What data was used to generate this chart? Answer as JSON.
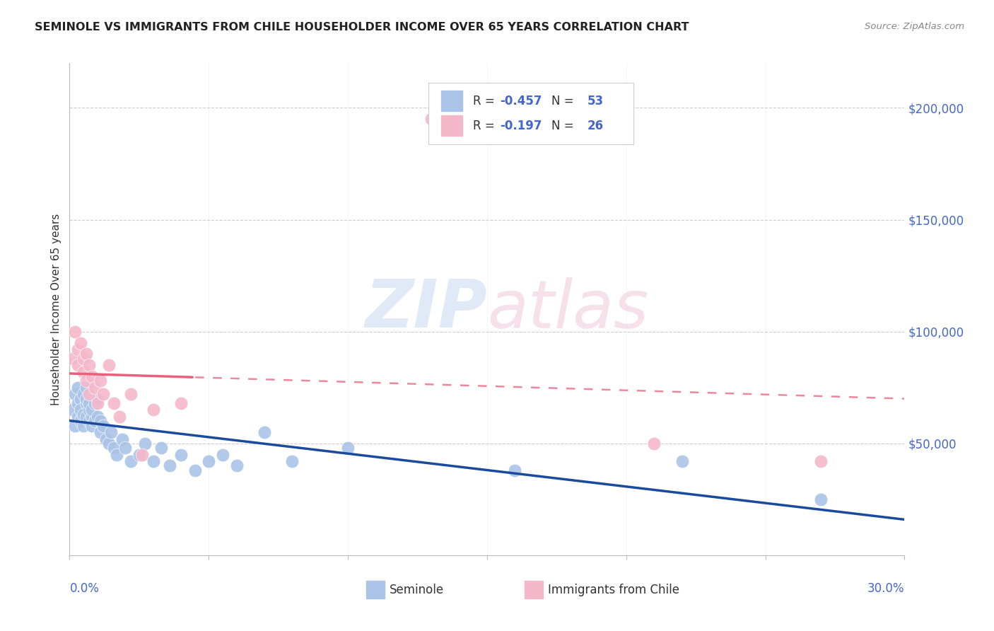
{
  "title": "SEMINOLE VS IMMIGRANTS FROM CHILE HOUSEHOLDER INCOME OVER 65 YEARS CORRELATION CHART",
  "source": "Source: ZipAtlas.com",
  "ylabel": "Householder Income Over 65 years",
  "xlim": [
    0.0,
    0.3
  ],
  "ylim": [
    0,
    220000
  ],
  "yticks": [
    0,
    50000,
    100000,
    150000,
    200000
  ],
  "ytick_labels": [
    "",
    "$50,000",
    "$100,000",
    "$150,000",
    "$200,000"
  ],
  "watermark_zip": "ZIP",
  "watermark_atlas": "atlas",
  "seminole_color": "#aac4e8",
  "chile_color": "#f5b8ca",
  "seminole_line_color": "#1a4a9c",
  "chile_line_color": "#e8607a",
  "seminole_label": "Seminole",
  "chile_label": "Immigrants from Chile",
  "blue_text_color": "#4466cc",
  "title_color": "#222222",
  "source_color": "#888888",
  "seminole_R": "-0.457",
  "seminole_N": "53",
  "chile_R": "-0.197",
  "chile_N": "26",
  "seminole_x": [
    0.001,
    0.002,
    0.002,
    0.003,
    0.003,
    0.003,
    0.004,
    0.004,
    0.004,
    0.005,
    0.005,
    0.005,
    0.006,
    0.006,
    0.006,
    0.006,
    0.007,
    0.007,
    0.007,
    0.008,
    0.008,
    0.008,
    0.009,
    0.009,
    0.01,
    0.01,
    0.011,
    0.011,
    0.012,
    0.013,
    0.014,
    0.015,
    0.016,
    0.017,
    0.019,
    0.02,
    0.022,
    0.025,
    0.027,
    0.03,
    0.033,
    0.036,
    0.04,
    0.045,
    0.05,
    0.055,
    0.06,
    0.07,
    0.08,
    0.1,
    0.16,
    0.22,
    0.27
  ],
  "seminole_y": [
    65000,
    58000,
    72000,
    62000,
    68000,
    75000,
    60000,
    70000,
    65000,
    72000,
    58000,
    63000,
    68000,
    75000,
    62000,
    70000,
    65000,
    60000,
    68000,
    62000,
    58000,
    65000,
    60000,
    68000,
    62000,
    70000,
    55000,
    60000,
    58000,
    52000,
    50000,
    55000,
    48000,
    45000,
    52000,
    48000,
    42000,
    45000,
    50000,
    42000,
    48000,
    40000,
    45000,
    38000,
    42000,
    45000,
    40000,
    55000,
    42000,
    48000,
    38000,
    42000,
    25000
  ],
  "chile_x": [
    0.001,
    0.002,
    0.003,
    0.003,
    0.004,
    0.005,
    0.005,
    0.006,
    0.006,
    0.007,
    0.007,
    0.008,
    0.009,
    0.01,
    0.011,
    0.012,
    0.014,
    0.016,
    0.018,
    0.022,
    0.026,
    0.03,
    0.04,
    0.13,
    0.21,
    0.27
  ],
  "chile_y": [
    88000,
    100000,
    85000,
    92000,
    95000,
    88000,
    82000,
    90000,
    78000,
    85000,
    72000,
    80000,
    75000,
    68000,
    78000,
    72000,
    85000,
    68000,
    62000,
    72000,
    45000,
    65000,
    68000,
    195000,
    50000,
    42000
  ]
}
